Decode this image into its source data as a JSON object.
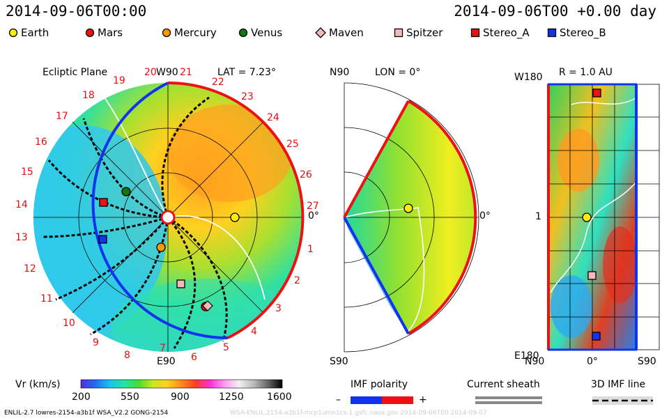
{
  "header": {
    "date_left": "2014-09-06T00:00",
    "date_right": "2014-09-06T00 +0.00 day"
  },
  "legend": [
    {
      "label": "Earth",
      "color": "#ffee00",
      "shape": "circle"
    },
    {
      "label": "Mars",
      "color": "#ee1111",
      "shape": "circle"
    },
    {
      "label": "Mercury",
      "color": "#ff9900",
      "shape": "circle"
    },
    {
      "label": "Venus",
      "color": "#117711",
      "shape": "circle"
    },
    {
      "label": "Maven",
      "color": "#f4b8b8",
      "shape": "diamond"
    },
    {
      "label": "Spitzer",
      "color": "#f4b8b8",
      "shape": "square"
    },
    {
      "label": "Stereo_A",
      "color": "#ee1111",
      "shape": "square"
    },
    {
      "label": "Stereo_B",
      "color": "#1133ee",
      "shape": "square"
    }
  ],
  "ecliptic": {
    "title": "Ecliptic Plane",
    "top_label": "W90",
    "bottom_label": "E90",
    "lat_label": "LAT = 7.23°",
    "zero_label": "0°",
    "rotation_numbers": [
      "1",
      "2",
      "3",
      "4",
      "5",
      "6",
      "7",
      "8",
      "9",
      "10",
      "11",
      "12",
      "13",
      "14",
      "15",
      "16",
      "17",
      "18",
      "19",
      "20",
      "21",
      "22",
      "23",
      "24",
      "25",
      "26",
      "27"
    ]
  },
  "meridional": {
    "top_left": "N90",
    "bottom_left": "S90",
    "lon_label": "LON = 0°",
    "zero_label": "0°"
  },
  "shell": {
    "title": "R = 1.0 AU",
    "top_left": "W180",
    "bottom_left": "E180",
    "mid_left": "1",
    "x_left": "N90",
    "x_mid": "0°",
    "x_right": "S90"
  },
  "colorbar": {
    "label": "Vr (km/s)",
    "ticks": [
      "200",
      "550",
      "900",
      "1250",
      "1600"
    ],
    "stops": [
      "#5a2bd8",
      "#1f6cf5",
      "#19c2f0",
      "#20e6a8",
      "#44dd33",
      "#c9e81c",
      "#ffd11a",
      "#ff8a1a",
      "#ff3a26",
      "#ff30d8",
      "#ff9cf0",
      "#f0f0f0",
      "#bbbbbb",
      "#666666",
      "#000000"
    ]
  },
  "imf": {
    "label": "IMF polarity",
    "minus": "–",
    "plus": "+",
    "neg_color": "#1133ee",
    "pos_color": "#ee1111"
  },
  "sheath": {
    "label": "Current sheath"
  },
  "imf3d": {
    "label": "3D IMF line"
  },
  "footer": {
    "left": "ENLIL-2.7 lowres-2154-a3b1f WSA_V2.2 GONG-2154",
    "right": "WSA-ENLIL.2154-a3b1f-mcp1umn1cs-1.gsfc.nasa.gov 2014-09-06T00 2014-09-07"
  }
}
